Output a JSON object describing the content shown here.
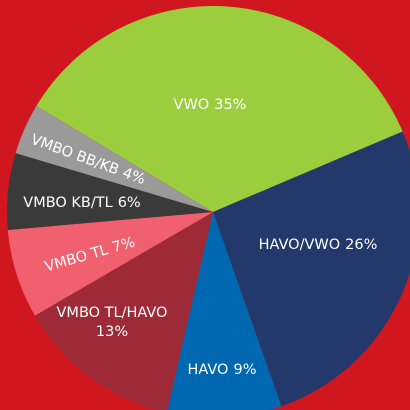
{
  "chart_data": {
    "type": "pie",
    "categories": [
      "VWO",
      "HAVO/VWO",
      "HAVO",
      "VMBO TL/HAVO",
      "VMBO TL",
      "VMBO KB/TL",
      "VMBO BB/KB"
    ],
    "values": [
      35,
      26,
      9,
      13,
      7,
      6,
      4
    ],
    "value_labels": [
      "35%",
      "26%",
      "9%",
      "13%",
      "7%",
      "6%",
      "4%"
    ],
    "colors": [
      "#9ccd3c",
      "#23386b",
      "#0068b0",
      "#9e2a37",
      "#f0606e",
      "#3a3a3a",
      "#9a9a9a"
    ]
  }
}
